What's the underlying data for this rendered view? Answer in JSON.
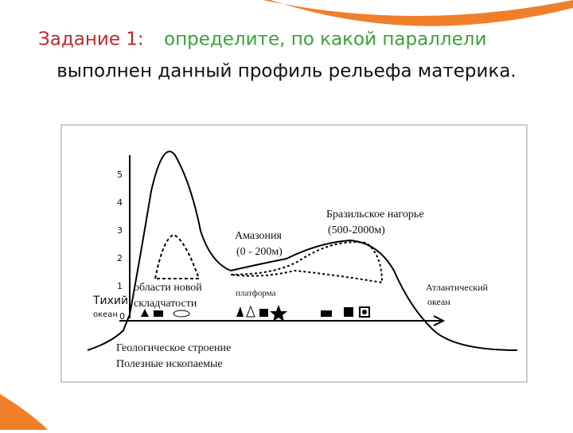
{
  "header": {
    "title_prefix": "Задание 1:",
    "title_green": "определите, по какой параллели",
    "title_line2": "выполнен данный профиль рельефа материка."
  },
  "diagram": {
    "y_axis_labels": [
      "0",
      "1",
      "2",
      "3",
      "4",
      "5"
    ],
    "labels": {
      "pacific_1": "Тихий",
      "pacific_2": "океан",
      "fold_1": "области новой",
      "fold_2": "складчатости",
      "amazon_1": "Амазония",
      "amazon_2": "(0 - 200м)",
      "platform": "платформа",
      "brazil_1": "Бразильское нагорье",
      "brazil_2": "(500-2000м)",
      "atlantic_1": "Атлантический",
      "atlantic_2": "океан",
      "geology": "Геологическое строение",
      "minerals": "Полезные ископаемые"
    }
  }
}
